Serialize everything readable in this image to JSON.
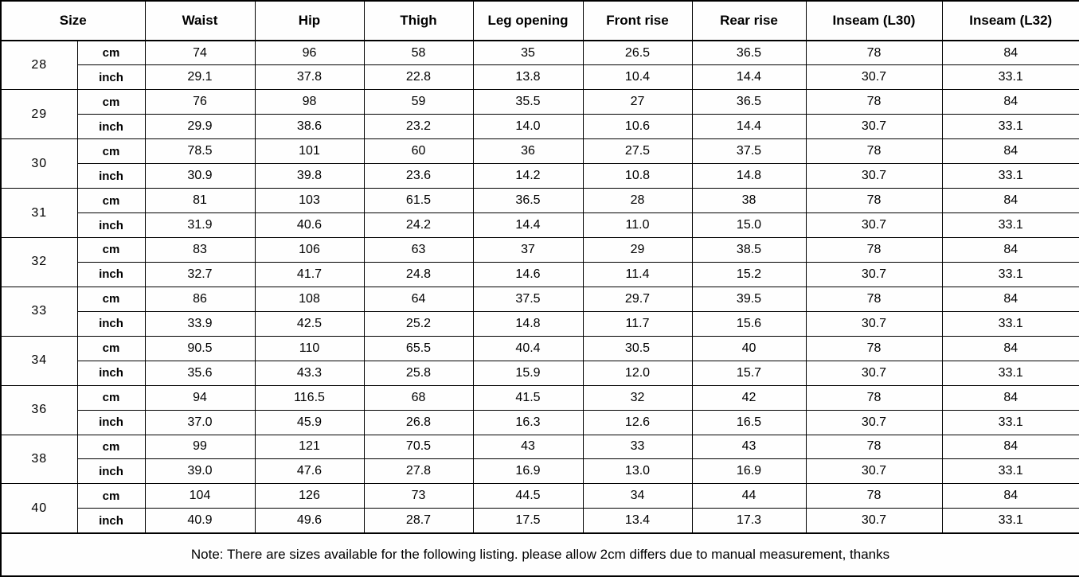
{
  "table": {
    "size_header": "Size",
    "columns": [
      "Waist",
      "Hip",
      "Thigh",
      "Leg opening",
      "Front rise",
      "Rear rise",
      "Inseam (L30)",
      "Inseam (L32)"
    ],
    "unit_labels": [
      "cm",
      "inch"
    ],
    "rows": [
      {
        "size": "28",
        "cm": [
          "74",
          "96",
          "58",
          "35",
          "26.5",
          "36.5",
          "78",
          "84"
        ],
        "inch": [
          "29.1",
          "37.8",
          "22.8",
          "13.8",
          "10.4",
          "14.4",
          "30.7",
          "33.1"
        ]
      },
      {
        "size": "29",
        "cm": [
          "76",
          "98",
          "59",
          "35.5",
          "27",
          "36.5",
          "78",
          "84"
        ],
        "inch": [
          "29.9",
          "38.6",
          "23.2",
          "14.0",
          "10.6",
          "14.4",
          "30.7",
          "33.1"
        ]
      },
      {
        "size": "30",
        "cm": [
          "78.5",
          "101",
          "60",
          "36",
          "27.5",
          "37.5",
          "78",
          "84"
        ],
        "inch": [
          "30.9",
          "39.8",
          "23.6",
          "14.2",
          "10.8",
          "14.8",
          "30.7",
          "33.1"
        ]
      },
      {
        "size": "31",
        "cm": [
          "81",
          "103",
          "61.5",
          "36.5",
          "28",
          "38",
          "78",
          "84"
        ],
        "inch": [
          "31.9",
          "40.6",
          "24.2",
          "14.4",
          "11.0",
          "15.0",
          "30.7",
          "33.1"
        ]
      },
      {
        "size": "32",
        "cm": [
          "83",
          "106",
          "63",
          "37",
          "29",
          "38.5",
          "78",
          "84"
        ],
        "inch": [
          "32.7",
          "41.7",
          "24.8",
          "14.6",
          "11.4",
          "15.2",
          "30.7",
          "33.1"
        ]
      },
      {
        "size": "33",
        "cm": [
          "86",
          "108",
          "64",
          "37.5",
          "29.7",
          "39.5",
          "78",
          "84"
        ],
        "inch": [
          "33.9",
          "42.5",
          "25.2",
          "14.8",
          "11.7",
          "15.6",
          "30.7",
          "33.1"
        ]
      },
      {
        "size": "34",
        "cm": [
          "90.5",
          "110",
          "65.5",
          "40.4",
          "30.5",
          "40",
          "78",
          "84"
        ],
        "inch": [
          "35.6",
          "43.3",
          "25.8",
          "15.9",
          "12.0",
          "15.7",
          "30.7",
          "33.1"
        ]
      },
      {
        "size": "36",
        "cm": [
          "94",
          "116.5",
          "68",
          "41.5",
          "32",
          "42",
          "78",
          "84"
        ],
        "inch": [
          "37.0",
          "45.9",
          "26.8",
          "16.3",
          "12.6",
          "16.5",
          "30.7",
          "33.1"
        ]
      },
      {
        "size": "38",
        "cm": [
          "99",
          "121",
          "70.5",
          "43",
          "33",
          "43",
          "78",
          "84"
        ],
        "inch": [
          "39.0",
          "47.6",
          "27.8",
          "16.9",
          "13.0",
          "16.9",
          "30.7",
          "33.1"
        ]
      },
      {
        "size": "40",
        "cm": [
          "104",
          "126",
          "73",
          "44.5",
          "34",
          "44",
          "78",
          "84"
        ],
        "inch": [
          "40.9",
          "49.6",
          "28.7",
          "17.5",
          "13.4",
          "17.3",
          "30.7",
          "33.1"
        ]
      }
    ],
    "note": "Note: There are sizes available for the following listing. please allow 2cm differs due to manual measurement, thanks"
  }
}
